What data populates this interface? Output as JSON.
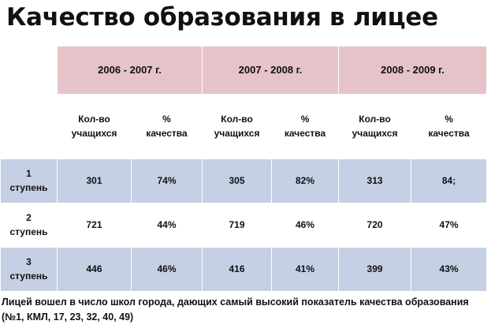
{
  "title": "Качество образования в лицее",
  "table": {
    "years": [
      "2006 - 2007 г.",
      "2007 - 2008 г.",
      "2008 - 2009 г."
    ],
    "subheaders": [
      {
        "line1": "Кол-во",
        "line2": "учащихся"
      },
      {
        "line1": "%",
        "line2": "качества"
      }
    ],
    "rows": [
      {
        "stage_num": "1",
        "stage_word": "ступень",
        "values": [
          "301",
          "74%",
          "305",
          "82%",
          "313",
          "84;"
        ]
      },
      {
        "stage_num": "2",
        "stage_word": "ступень",
        "values": [
          "721",
          "44%",
          "719",
          "46%",
          "720",
          "47%"
        ]
      },
      {
        "stage_num": "3",
        "stage_word": "ступень",
        "values": [
          "446",
          "46%",
          "416",
          "41%",
          "399",
          "43%"
        ]
      }
    ]
  },
  "footnote": "Лицей вошел в число школ города, дающих самый высокий показатель качества образования (№1, КМЛ, 17, 23, 32, 40, 49)",
  "colors": {
    "header_fill": "#e6c3c8",
    "shaded_row_fill": "#c5d0e4"
  }
}
